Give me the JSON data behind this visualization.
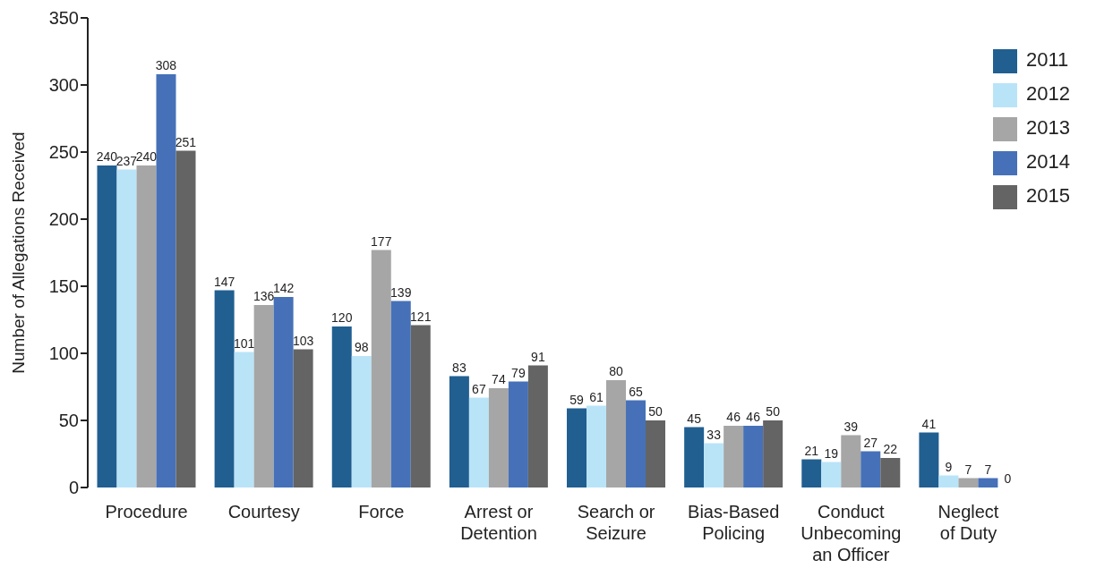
{
  "chart_data": {
    "type": "bar",
    "ylabel": "Number of Allegations Received",
    "categories": [
      "Procedure",
      "Courtesy",
      "Force",
      "Arrest or Detention",
      "Search or Seizure",
      "Bias-Based Policing",
      "Conduct Unbecoming an Officer",
      "Neglect of Duty"
    ],
    "series": [
      {
        "name": "2011",
        "color": "#215f91",
        "values": [
          240,
          147,
          120,
          83,
          59,
          45,
          21,
          41
        ]
      },
      {
        "name": "2012",
        "color": "#b9e4f8",
        "values": [
          237,
          101,
          98,
          67,
          61,
          33,
          19,
          9
        ]
      },
      {
        "name": "2013",
        "color": "#a6a6a6",
        "values": [
          240,
          136,
          177,
          74,
          80,
          46,
          39,
          7
        ]
      },
      {
        "name": "2014",
        "color": "#4671b8",
        "values": [
          308,
          142,
          139,
          79,
          65,
          46,
          27,
          7
        ]
      },
      {
        "name": "2015",
        "color": "#636463",
        "values": [
          251,
          103,
          121,
          91,
          50,
          50,
          22,
          0
        ]
      }
    ],
    "ylim": [
      0,
      350
    ],
    "yticks": [
      0,
      50,
      100,
      150,
      200,
      250,
      300,
      350
    ],
    "data_labels": true,
    "legend": "top right"
  }
}
